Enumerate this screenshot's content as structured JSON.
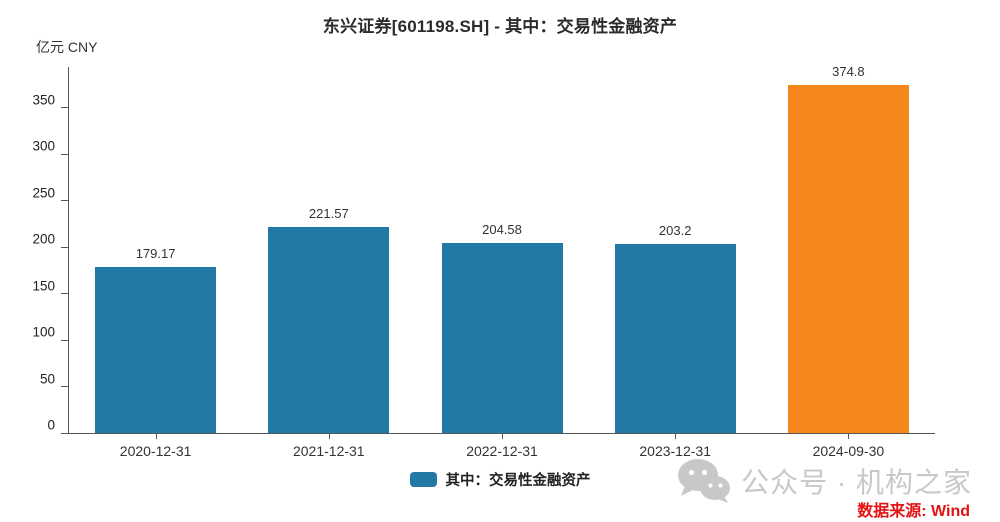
{
  "title": "东兴证券[601198.SH] - 其中：交易性金融资产",
  "y_unit": "亿元 CNY",
  "chart_data": {
    "type": "bar",
    "categories": [
      "2020-12-31",
      "2021-12-31",
      "2022-12-31",
      "2023-12-31",
      "2024-09-30"
    ],
    "values": [
      179.17,
      221.57,
      204.58,
      203.2,
      374.8
    ],
    "value_labels": [
      "179.17",
      "221.57",
      "204.58",
      "203.2",
      "374.8"
    ],
    "bar_colors": [
      "#2279A6",
      "#2279A6",
      "#2279A6",
      "#2279A6",
      "#F6871D"
    ],
    "title": "东兴证券[601198.SH] - 其中：交易性金融资产",
    "ylabel": "亿元 CNY",
    "xlabel": "",
    "ylim": [
      0,
      394
    ],
    "yticks": [
      0,
      50,
      100,
      150,
      200,
      250,
      300,
      350
    ],
    "grid": false,
    "legend": {
      "label": "其中：交易性金融资产",
      "swatch_color": "#2279A6",
      "position": "bottom-center"
    }
  },
  "watermark": {
    "icon": "wechat-icon",
    "account_text": "公众号 · 机构之家",
    "source_text": "数据来源: Wind",
    "text_color": "#c8c8c8",
    "source_color": "#E21414"
  }
}
